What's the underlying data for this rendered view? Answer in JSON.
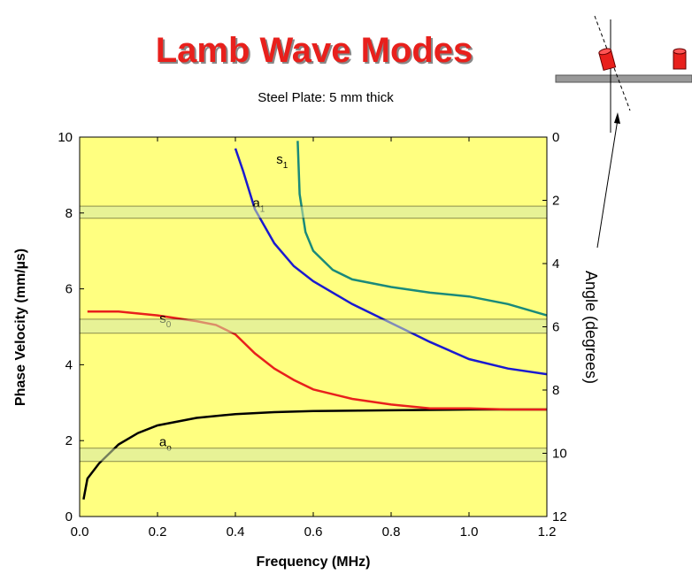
{
  "chart_data": {
    "type": "line",
    "title": "Lamb Wave Modes",
    "subtitle": "Steel Plate: 5 mm thick",
    "x_label": "Frequency (MHz)",
    "y_label": "Phase Velocity (mm/µs)",
    "y2_label": "Angle (degrees)",
    "xlim": [
      0,
      1.2
    ],
    "xticks": [
      {
        "value": 0,
        "label": "0.0"
      },
      0.2,
      0.4,
      0.6,
      0.8,
      {
        "value": 1,
        "label": "1.0"
      },
      1.2
    ],
    "ylim": [
      0,
      10
    ],
    "yticks": [
      0,
      2,
      4,
      6,
      8,
      10
    ],
    "y2lim": [
      12,
      0
    ],
    "y2ticks": [
      0,
      2,
      4,
      6,
      8,
      10,
      12
    ],
    "background": "#ffff80",
    "bands": [
      [
        7.86,
        8.18
      ],
      [
        4.83,
        5.2
      ],
      [
        1.45,
        1.8
      ]
    ],
    "band_color": "#d4e8a8",
    "series": [
      {
        "label": "a",
        "sub": "o",
        "color": "#000000",
        "label_at": [
          0.22,
          1.85
        ],
        "x": [
          0.01,
          0.02,
          0.05,
          0.07,
          0.1,
          0.15,
          0.2,
          0.3,
          0.4,
          0.5,
          0.6,
          0.8,
          1.0,
          1.2
        ],
        "values": [
          0.45,
          1.0,
          1.4,
          1.6,
          1.9,
          2.2,
          2.4,
          2.6,
          2.7,
          2.75,
          2.78,
          2.8,
          2.82,
          2.82
        ]
      },
      {
        "label": "s",
        "sub": "0",
        "color": "#e8201c",
        "label_at": [
          0.22,
          5.1
        ],
        "x": [
          0.02,
          0.1,
          0.2,
          0.3,
          0.35,
          0.4,
          0.45,
          0.5,
          0.55,
          0.6,
          0.7,
          0.8,
          0.9,
          1.0,
          1.1,
          1.2
        ],
        "values": [
          5.4,
          5.4,
          5.3,
          5.15,
          5.05,
          4.8,
          4.3,
          3.9,
          3.6,
          3.35,
          3.1,
          2.95,
          2.85,
          2.85,
          2.82,
          2.82
        ]
      },
      {
        "label": "a",
        "sub": "1",
        "color": "#1a1ad0",
        "label_at": [
          0.46,
          8.15
        ],
        "x": [
          0.4,
          0.42,
          0.45,
          0.5,
          0.55,
          0.6,
          0.7,
          0.8,
          0.9,
          1.0,
          1.1,
          1.2
        ],
        "values": [
          9.7,
          9.1,
          8.1,
          7.2,
          6.6,
          6.2,
          5.6,
          5.1,
          4.6,
          4.15,
          3.9,
          3.75
        ]
      },
      {
        "label": "s",
        "sub": "1",
        "color": "#1a8a7a",
        "label_at": [
          0.52,
          9.3
        ],
        "x": [
          0.56,
          0.565,
          0.58,
          0.6,
          0.65,
          0.7,
          0.8,
          0.9,
          1.0,
          1.1,
          1.2
        ],
        "values": [
          9.9,
          8.5,
          7.5,
          7.0,
          6.5,
          6.25,
          6.05,
          5.9,
          5.8,
          5.6,
          5.3
        ]
      }
    ]
  }
}
